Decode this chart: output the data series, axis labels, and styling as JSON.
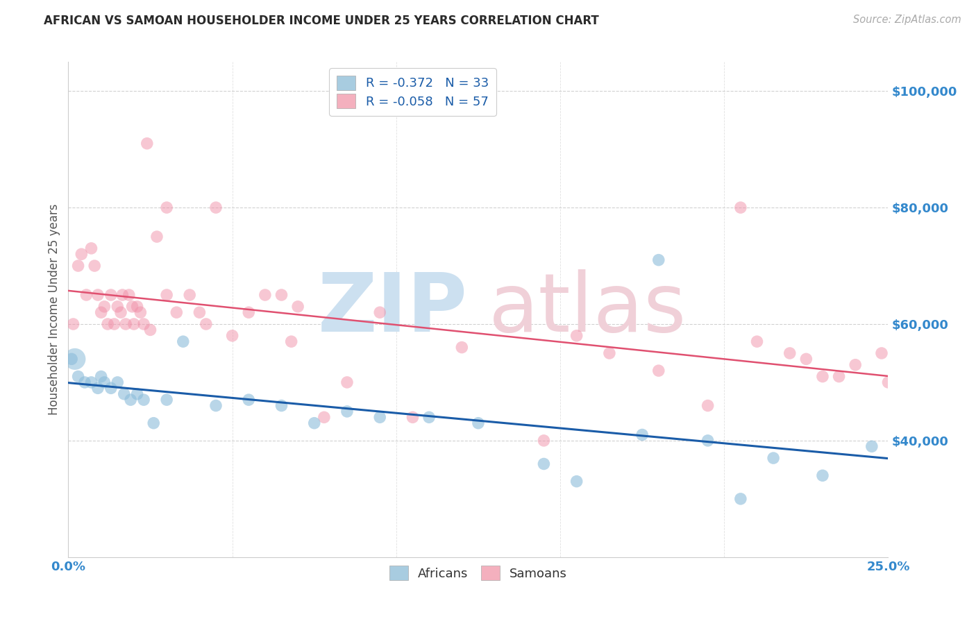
{
  "title": "AFRICAN VS SAMOAN HOUSEHOLDER INCOME UNDER 25 YEARS CORRELATION CHART",
  "source": "Source: ZipAtlas.com",
  "ylabel": "Householder Income Under 25 years",
  "legend_r_entries": [
    "R = -0.372   N = 33",
    "R = -0.058   N = 57"
  ],
  "legend_bottom": [
    "Africans",
    "Samoans"
  ],
  "africans_x": [
    0.1,
    0.3,
    0.5,
    0.7,
    0.9,
    1.0,
    1.1,
    1.3,
    1.5,
    1.7,
    1.9,
    2.1,
    2.3,
    2.6,
    3.0,
    3.5,
    4.5,
    5.5,
    6.5,
    7.5,
    8.5,
    9.5,
    11.0,
    12.5,
    14.5,
    15.5,
    17.5,
    18.0,
    19.5,
    20.5,
    21.5,
    23.0,
    24.5
  ],
  "africans_y": [
    54000,
    51000,
    50000,
    50000,
    49000,
    51000,
    50000,
    49000,
    50000,
    48000,
    47000,
    48000,
    47000,
    43000,
    47000,
    57000,
    46000,
    47000,
    46000,
    43000,
    45000,
    44000,
    44000,
    43000,
    36000,
    33000,
    41000,
    71000,
    40000,
    30000,
    37000,
    34000,
    39000
  ],
  "africans_size": [
    120,
    120,
    120,
    120,
    120,
    120,
    120,
    120,
    120,
    120,
    120,
    120,
    120,
    120,
    120,
    120,
    120,
    120,
    120,
    120,
    120,
    120,
    120,
    120,
    120,
    120,
    120,
    120,
    120,
    120,
    120,
    120,
    120
  ],
  "africans_size_big": 500,
  "africans_big_x": 0.2,
  "africans_big_y": 54000,
  "samoans_x": [
    0.15,
    0.3,
    0.4,
    0.55,
    0.7,
    0.8,
    0.9,
    1.0,
    1.1,
    1.2,
    1.3,
    1.4,
    1.5,
    1.6,
    1.65,
    1.75,
    1.85,
    1.95,
    2.0,
    2.1,
    2.2,
    2.3,
    2.5,
    2.7,
    3.0,
    3.3,
    3.7,
    4.0,
    4.5,
    5.5,
    6.0,
    6.5,
    7.0,
    7.8,
    2.4,
    3.0,
    4.2,
    5.0,
    6.8,
    8.5,
    9.5,
    10.5,
    12.0,
    14.5,
    15.5,
    16.5,
    18.0,
    19.5,
    20.5,
    21.0,
    22.0,
    22.5,
    23.0,
    23.5,
    24.0,
    24.8,
    25.0
  ],
  "samoans_y": [
    60000,
    70000,
    72000,
    65000,
    73000,
    70000,
    65000,
    62000,
    63000,
    60000,
    65000,
    60000,
    63000,
    62000,
    65000,
    60000,
    65000,
    63000,
    60000,
    63000,
    62000,
    60000,
    59000,
    75000,
    65000,
    62000,
    65000,
    62000,
    80000,
    62000,
    65000,
    65000,
    63000,
    44000,
    91000,
    80000,
    60000,
    58000,
    57000,
    50000,
    62000,
    44000,
    56000,
    40000,
    58000,
    55000,
    52000,
    46000,
    80000,
    57000,
    55000,
    54000,
    51000,
    51000,
    53000,
    55000,
    50000
  ],
  "xlim": [
    0,
    25
  ],
  "ylim": [
    20000,
    105000
  ],
  "yticks": [
    40000,
    60000,
    80000,
    100000
  ],
  "ytick_labels": [
    "$40,000",
    "$60,000",
    "$80,000",
    "$100,000"
  ],
  "blue_scatter_color": "#8bbcda",
  "pink_scatter_color": "#f090a8",
  "blue_line_color": "#1a5ca8",
  "pink_line_color": "#e05070",
  "blue_legend_color": "#a8cce0",
  "pink_legend_color": "#f4b0be",
  "grid_color": "#cccccc",
  "background_color": "#ffffff",
  "title_color": "#2a2a2a",
  "source_color": "#aaaaaa",
  "tick_color": "#3388cc",
  "watermark_zip_color": "#cce0f0",
  "watermark_atlas_color": "#f0d0d8"
}
